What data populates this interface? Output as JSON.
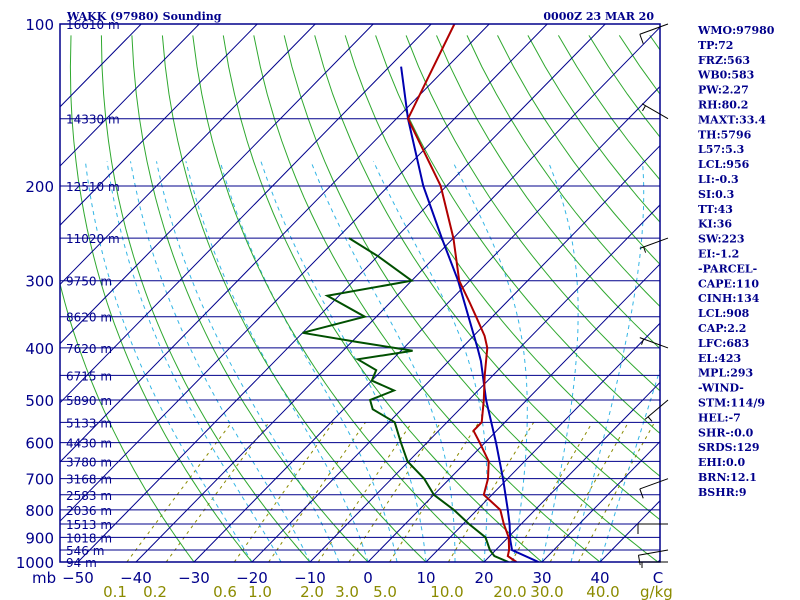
{
  "header": {
    "station": "WAKK (97980) Sounding",
    "time": "0000Z 23 MAR 20"
  },
  "indices": [
    "WMO:97980",
    "TP:72",
    "FRZ:563",
    "WB0:583",
    "PW:2.27",
    "RH:80.2",
    "MAXT:33.4",
    "TH:5796",
    "L57:5.3",
    "LCL:956",
    "LI:-0.3",
    "SI:0.3",
    "TT:43",
    "KI:36",
    "SW:223",
    "EI:-1.2",
    "-PARCEL-",
    "CAPE:110",
    "CINH:134",
    "LCL:908",
    "CAP:2.2",
    "LFC:683",
    "EL:423",
    "MPL:293",
    "-WIND-",
    "STM:114/9",
    "HEL:-7",
    "SHR-:0.0",
    "SRDS:129",
    "EHI:0.0",
    "BRN:12.1",
    "BSHR:9"
  ],
  "colors": {
    "frame": "#00008b",
    "isobar": "#00008b",
    "isotherm": "#00008b",
    "dry_adiabat": "#2fa82f",
    "moist_adiabat": "#33b5e5",
    "mixing_ratio": "#8b8b00",
    "temperature": "#b00000",
    "dewpoint": "#005000",
    "parcel": "#0000b0",
    "wind": "#000000"
  },
  "chart_data": {
    "type": "skew-t",
    "pressure_axis_label": "mb",
    "x_axis_unit": "g/kg",
    "ylim": [
      1000,
      100
    ],
    "xlim": [
      -50,
      50
    ],
    "pressure_ticks": [
      100,
      200,
      300,
      400,
      500,
      600,
      700,
      800,
      900,
      1000
    ],
    "temperature_ticks": [
      -50,
      -40,
      -30,
      -20,
      -10,
      0,
      10,
      20,
      30,
      40
    ],
    "mixing_ratio_ticks": [
      "0.1",
      "0.2",
      "0.6",
      "1.0",
      "2.0",
      "3.0",
      "5.0",
      "10.0",
      "20.0",
      "30.0",
      "40.0"
    ],
    "height_labels": [
      {
        "p": 100,
        "label": "16610 m"
      },
      {
        "p": 150,
        "label": "14330 m"
      },
      {
        "p": 200,
        "label": "12510 m"
      },
      {
        "p": 250,
        "label": "11020 m"
      },
      {
        "p": 300,
        "label": "9750 m"
      },
      {
        "p": 350,
        "label": "8620 m"
      },
      {
        "p": 400,
        "label": "7620 m"
      },
      {
        "p": 450,
        "label": "6715 m"
      },
      {
        "p": 500,
        "label": "5890 m"
      },
      {
        "p": 550,
        "label": "5133 m"
      },
      {
        "p": 600,
        "label": "4430 m"
      },
      {
        "p": 650,
        "label": "3780 m"
      },
      {
        "p": 700,
        "label": "3168 m"
      },
      {
        "p": 750,
        "label": "2583 m"
      },
      {
        "p": 800,
        "label": "2036 m"
      },
      {
        "p": 850,
        "label": "1513 m"
      },
      {
        "p": 900,
        "label": "1018 m"
      },
      {
        "p": 950,
        "label": "546 m"
      },
      {
        "p": 1000,
        "label": "94 m"
      }
    ],
    "temperature": [
      {
        "p": 1000,
        "t": 25.6
      },
      {
        "p": 975,
        "t": 23.1
      },
      {
        "p": 950,
        "t": 22.3
      },
      {
        "p": 900,
        "t": 20.1
      },
      {
        "p": 850,
        "t": 17.0
      },
      {
        "p": 800,
        "t": 14.0
      },
      {
        "p": 750,
        "t": 8.6
      },
      {
        "p": 700,
        "t": 6.6
      },
      {
        "p": 650,
        "t": 3.8
      },
      {
        "p": 600,
        "t": -0.9
      },
      {
        "p": 570,
        "t": -4.0
      },
      {
        "p": 550,
        "t": -4.0
      },
      {
        "p": 500,
        "t": -7.4
      },
      {
        "p": 450,
        "t": -11.4
      },
      {
        "p": 400,
        "t": -15.6
      },
      {
        "p": 380,
        "t": -18.1
      },
      {
        "p": 350,
        "t": -22.8
      },
      {
        "p": 330,
        "t": -26.2
      },
      {
        "p": 300,
        "t": -31.8
      },
      {
        "p": 250,
        "t": -40.0
      },
      {
        "p": 200,
        "t": -51.0
      },
      {
        "p": 150,
        "t": -68.0
      },
      {
        "p": 100,
        "t": -76.0
      }
    ],
    "dewpoint": [
      {
        "p": 1000,
        "t": 24.2
      },
      {
        "p": 975,
        "t": 20.8
      },
      {
        "p": 950,
        "t": 19.0
      },
      {
        "p": 900,
        "t": 16.1
      },
      {
        "p": 850,
        "t": 11.0
      },
      {
        "p": 800,
        "t": 6.0
      },
      {
        "p": 750,
        "t": 0.0
      },
      {
        "p": 700,
        "t": -4.4
      },
      {
        "p": 650,
        "t": -10.2
      },
      {
        "p": 600,
        "t": -14.5
      },
      {
        "p": 550,
        "t": -19.0
      },
      {
        "p": 520,
        "t": -25.0
      },
      {
        "p": 500,
        "t": -27.0
      },
      {
        "p": 480,
        "t": -24.5
      },
      {
        "p": 460,
        "t": -30.0
      },
      {
        "p": 440,
        "t": -31.0
      },
      {
        "p": 420,
        "t": -36.0
      },
      {
        "p": 405,
        "t": -28.0
      },
      {
        "p": 390,
        "t": -39.0
      },
      {
        "p": 375,
        "t": -50.0
      },
      {
        "p": 350,
        "t": -42.0
      },
      {
        "p": 320,
        "t": -52.0
      },
      {
        "p": 300,
        "t": -40.0
      },
      {
        "p": 270,
        "t": -50.0
      },
      {
        "p": 250,
        "t": -58.0
      }
    ],
    "parcel": [
      {
        "p": 1000,
        "t": 29.4
      },
      {
        "p": 950,
        "t": 22.8
      },
      {
        "p": 908,
        "t": 20.7
      },
      {
        "p": 850,
        "t": 18.0
      },
      {
        "p": 800,
        "t": 15.3
      },
      {
        "p": 700,
        "t": 9.2
      },
      {
        "p": 600,
        "t": 1.9
      },
      {
        "p": 500,
        "t": -7.0
      },
      {
        "p": 423,
        "t": -14.5
      },
      {
        "p": 400,
        "t": -17.3
      },
      {
        "p": 300,
        "t": -32.0
      },
      {
        "p": 250,
        "t": -42.0
      },
      {
        "p": 200,
        "t": -54.0
      },
      {
        "p": 150,
        "t": -68.0
      },
      {
        "p": 120,
        "t": -78.0
      }
    ],
    "wind_barbs": [
      {
        "p": 1000,
        "dir": 270,
        "spd": 5
      },
      {
        "p": 950,
        "dir": 260,
        "spd": 10
      },
      {
        "p": 850,
        "dir": 270,
        "spd": 10
      },
      {
        "p": 700,
        "dir": 250,
        "spd": 10
      },
      {
        "p": 500,
        "dir": 230,
        "spd": 5
      },
      {
        "p": 400,
        "dir": 290,
        "spd": 5
      },
      {
        "p": 250,
        "dir": 250,
        "spd": 5
      },
      {
        "p": 150,
        "dir": 300,
        "spd": 5
      },
      {
        "p": 100,
        "dir": 250,
        "spd": 10
      }
    ]
  }
}
